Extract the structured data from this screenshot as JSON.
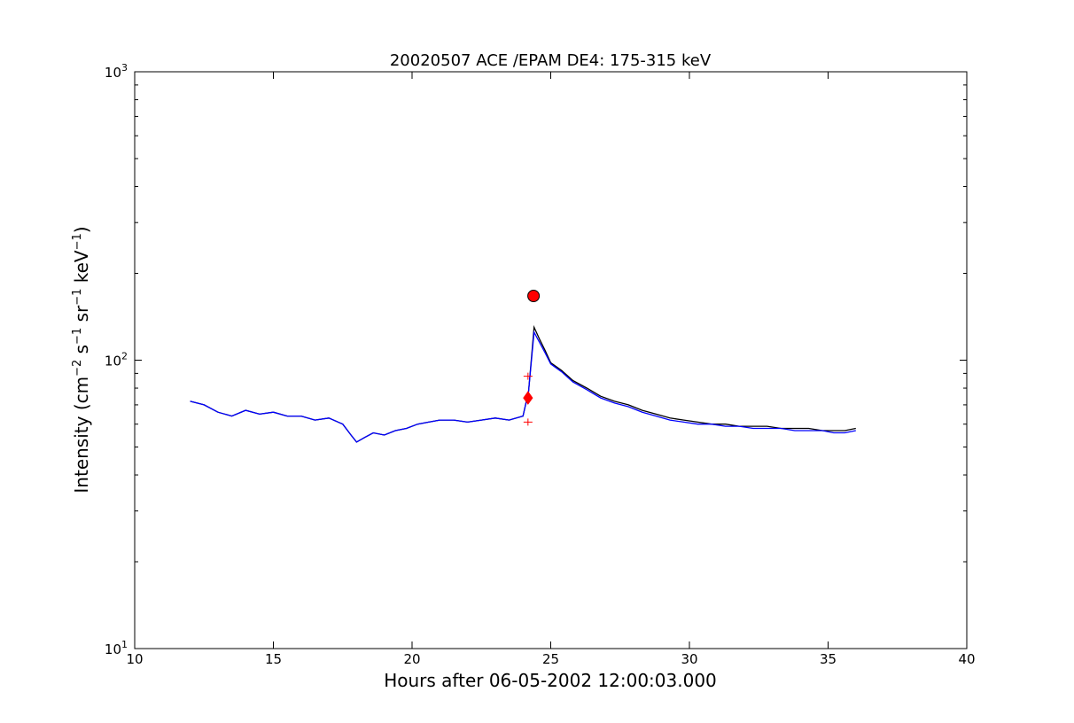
{
  "chart_data": {
    "type": "line",
    "title": "20020507 ACE /EPAM DE4: 175-315 keV",
    "xlabel": "Hours after 06-05-2002 12:00:03.000",
    "ylabel": {
      "text_parts": [
        "Intensity (cm",
        "−2",
        " s",
        "−1",
        " sr",
        "−1",
        " keV",
        "−1",
        ")"
      ]
    },
    "xlim": [
      10,
      40
    ],
    "ylim": [
      10,
      1000
    ],
    "yscale": "log",
    "grid": false,
    "x_ticks": [
      10,
      15,
      20,
      25,
      30,
      35,
      40
    ],
    "x_tick_labels": [
      "10",
      "15",
      "20",
      "25",
      "30",
      "35",
      "40"
    ],
    "y_ticks": [
      10,
      100,
      1000
    ],
    "y_tick_labels": [
      {
        "base": "10",
        "exp": "1"
      },
      {
        "base": "10",
        "exp": "2"
      },
      {
        "base": "10",
        "exp": "3"
      }
    ],
    "series": [
      {
        "style": "black raw intensity",
        "color": "#000000",
        "x": [
          12.0,
          12.5,
          13.0,
          13.5,
          14.0,
          14.5,
          15.0,
          15.5,
          16.0,
          16.5,
          17.0,
          17.5,
          17.8,
          18.0,
          18.3,
          18.6,
          19.0,
          19.4,
          19.8,
          20.2,
          20.6,
          21.0,
          21.5,
          22.0,
          22.5,
          23.0,
          23.5,
          24.0,
          24.2,
          24.4,
          24.6,
          24.8,
          25.0,
          25.4,
          25.8,
          26.3,
          26.8,
          27.3,
          27.8,
          28.3,
          28.8,
          29.3,
          29.8,
          30.3,
          30.8,
          31.3,
          31.8,
          32.3,
          32.8,
          33.3,
          33.8,
          34.3,
          34.8,
          35.2,
          35.6,
          36.0
        ],
        "y": [
          72,
          70,
          66,
          64,
          67,
          65,
          66,
          64,
          64,
          62,
          63,
          60,
          55,
          52,
          54,
          56,
          55,
          57,
          58,
          60,
          61,
          62,
          62,
          61,
          62,
          63,
          62,
          64,
          78,
          130,
          118,
          108,
          98,
          92,
          85,
          80,
          75,
          72,
          70,
          67,
          65,
          63,
          62,
          61,
          60,
          60,
          59,
          59,
          59,
          58,
          58,
          58,
          57,
          57,
          57,
          58
        ]
      },
      {
        "style": "blue smoothed intensity",
        "color": "#0000ff",
        "x": [
          12.0,
          12.5,
          13.0,
          13.5,
          14.0,
          14.5,
          15.0,
          15.5,
          16.0,
          16.5,
          17.0,
          17.5,
          17.8,
          18.0,
          18.3,
          18.6,
          19.0,
          19.4,
          19.8,
          20.2,
          20.6,
          21.0,
          21.5,
          22.0,
          22.5,
          23.0,
          23.5,
          24.0,
          24.2,
          24.4,
          24.6,
          24.8,
          25.0,
          25.4,
          25.8,
          26.3,
          26.8,
          27.3,
          27.8,
          28.3,
          28.8,
          29.3,
          29.8,
          30.3,
          30.8,
          31.3,
          31.8,
          32.3,
          32.8,
          33.3,
          33.8,
          34.3,
          34.8,
          35.2,
          35.6,
          36.0
        ],
        "y": [
          72,
          70,
          66,
          64,
          67,
          65,
          66,
          64,
          64,
          62,
          63,
          60,
          55,
          52,
          54,
          56,
          55,
          57,
          58,
          60,
          61,
          62,
          62,
          61,
          62,
          63,
          62,
          64,
          78,
          125,
          115,
          106,
          97,
          91,
          84,
          79,
          74,
          71,
          69,
          66,
          64,
          62,
          61,
          60,
          60,
          59,
          59,
          58,
          58,
          58,
          57,
          57,
          57,
          56,
          56,
          57
        ]
      }
    ],
    "markers": [
      {
        "kind": "peak",
        "shape": "circle",
        "color": "#ff0000",
        "x": 24.38,
        "y": 167
      },
      {
        "kind": "onset",
        "shape": "diamond",
        "color": "#ff0000",
        "x": 24.18,
        "y": 74
      },
      {
        "kind": "onset-error",
        "shape": "cross",
        "color": "#ff0000",
        "x": 24.18,
        "y": 88
      },
      {
        "kind": "onset-error",
        "shape": "cross",
        "color": "#ff0000",
        "x": 24.18,
        "y": 61
      }
    ]
  }
}
